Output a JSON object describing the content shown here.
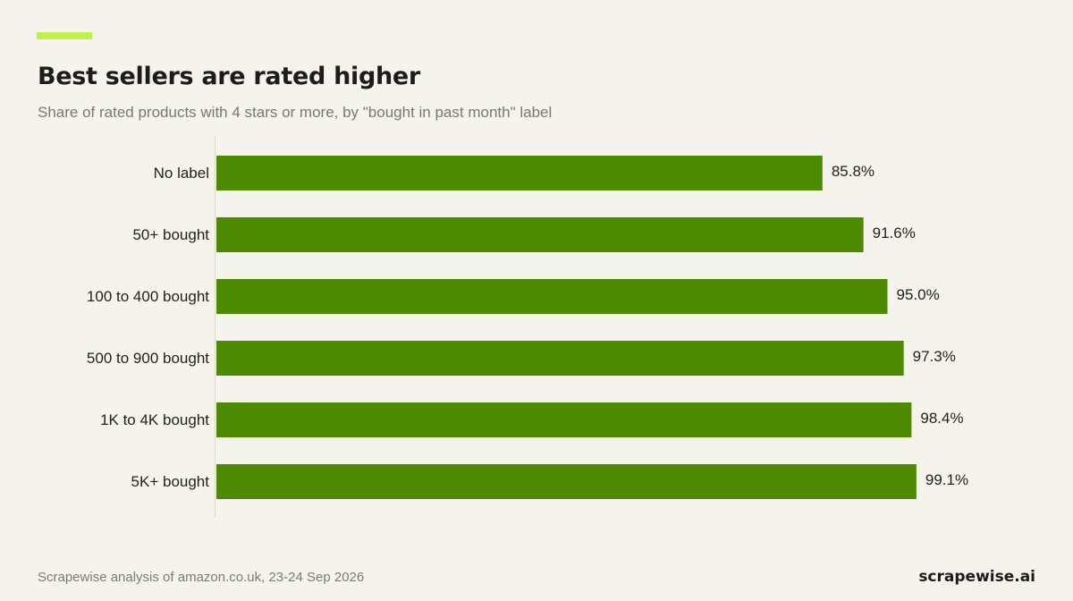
{
  "accent_color": "#c0f04b",
  "bar_color": "#4e8a00",
  "title": "Best sellers are rated higher",
  "subtitle": "Share of rated products with 4 stars or more, by \"bought in past month\" label",
  "chart_data": {
    "type": "bar",
    "orientation": "horizontal",
    "categories": [
      "No label",
      "50+ bought",
      "100 to 400 bought",
      "500 to 900 bought",
      "1K to 4K bought",
      "5K+ bought"
    ],
    "values": [
      85.8,
      91.6,
      95.0,
      97.3,
      98.4,
      99.1
    ],
    "value_labels": [
      "85.8%",
      "91.6%",
      "95.0%",
      "97.3%",
      "98.4%",
      "99.1%"
    ],
    "title": "Best sellers are rated higher",
    "subtitle": "Share of rated products with 4 stars or more, by \"bought in past month\" label",
    "xlabel": "",
    "ylabel": "",
    "xlim": [
      0,
      100
    ],
    "grid": false,
    "legend": "none"
  },
  "footer": {
    "source": "Scrapewise analysis of amazon.co.uk, 23-24 Sep 2026",
    "brand": "scrapewise.ai"
  }
}
